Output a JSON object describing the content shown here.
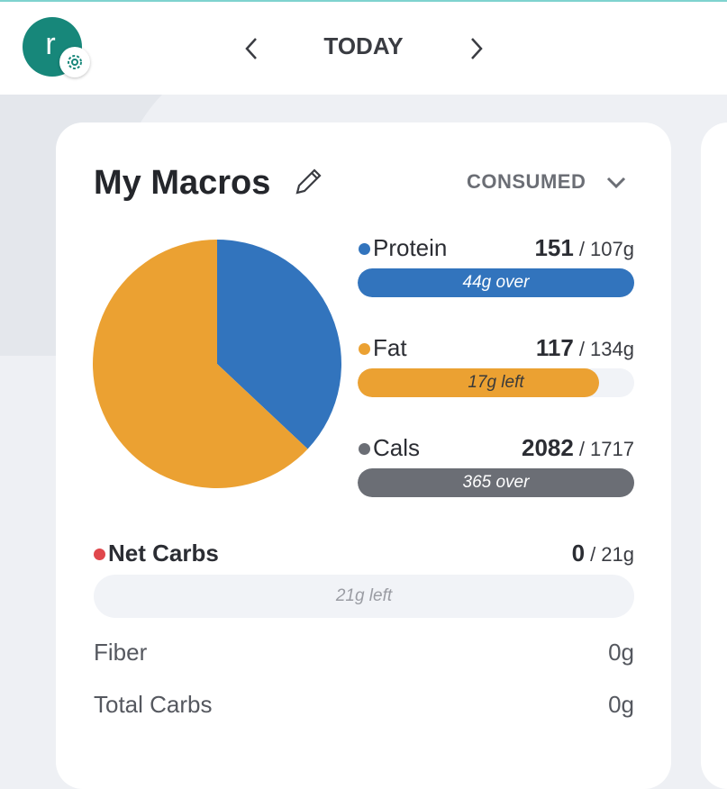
{
  "header": {
    "avatar": "r",
    "title": "TODAY"
  },
  "card": {
    "title": "My Macros",
    "mode": "CONSUMED"
  },
  "pie": {
    "values": [
      37,
      63
    ],
    "colors": [
      "#3274bd",
      "#eba132"
    ]
  },
  "macros": [
    {
      "name": "Protein",
      "color": "#3274bd",
      "consumed": 151,
      "goal": {
        "value": 107,
        "label": "/ 107g"
      },
      "status": "44g over",
      "status_color": "#ffffff"
    },
    {
      "name": "Fat",
      "color": "#eba132",
      "consumed": 117,
      "goal": {
        "value": 134,
        "label": "/ 134g"
      },
      "status": "17g left",
      "status_color": "#3a3a3a"
    },
    {
      "name": "Cals",
      "color": "#6b6e75",
      "consumed": 2082,
      "goal": {
        "value": 1717,
        "label": "/ 1717"
      },
      "status": "365 over",
      "status_color": "#ffffff"
    }
  ],
  "net_carbs": {
    "name": "Net Carbs",
    "color": "#e0474c",
    "consumed": 0,
    "goal": {
      "value": 21,
      "label": "/ 21g"
    },
    "status": "21g left",
    "status_color": "#9a9ca3"
  },
  "details": [
    {
      "label": "Fiber",
      "value": "0g"
    },
    {
      "label": "Total Carbs",
      "value": "0g"
    }
  ]
}
